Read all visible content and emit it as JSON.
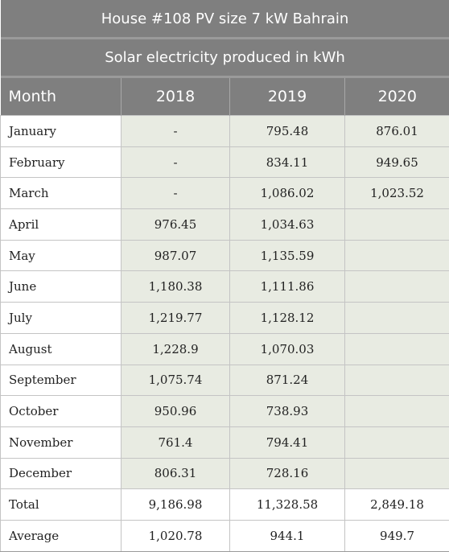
{
  "title": "House #108 PV size 7 kW Bahrain",
  "subtitle": "Solar electricity produced in kWh",
  "headers": [
    "Month",
    "2018",
    "2019",
    "2020"
  ],
  "rows": [
    {
      "month": "January",
      "v2018": "-",
      "v2019": "795.48",
      "v2020": "876.01"
    },
    {
      "month": "February",
      "v2018": "-",
      "v2019": "834.11",
      "v2020": "949.65"
    },
    {
      "month": "March",
      "v2018": "-",
      "v2019": "1,086.02",
      "v2020": "1,023.52"
    },
    {
      "month": "April",
      "v2018": "976.45",
      "v2019": "1,034.63",
      "v2020": ""
    },
    {
      "month": "May",
      "v2018": "987.07",
      "v2019": "1,135.59",
      "v2020": ""
    },
    {
      "month": "June",
      "v2018": "1,180.38",
      "v2019": "1,111.86",
      "v2020": ""
    },
    {
      "month": "July",
      "v2018": "1,219.77",
      "v2019": "1,128.12",
      "v2020": ""
    },
    {
      "month": "August",
      "v2018": "1,228.9",
      "v2019": "1,070.03",
      "v2020": ""
    },
    {
      "month": "September",
      "v2018": "1,075.74",
      "v2019": "871.24",
      "v2020": ""
    },
    {
      "month": "October",
      "v2018": "950.96",
      "v2019": "738.93",
      "v2020": ""
    },
    {
      "month": "November",
      "v2018": "761.4",
      "v2019": "794.41",
      "v2020": ""
    },
    {
      "month": "December",
      "v2018": "806.31",
      "v2019": "728.16",
      "v2020": ""
    }
  ],
  "summary": [
    {
      "label": "Total",
      "v2018": "9,186.98",
      "v2019": "11,328.58",
      "v2020": "2,849.18"
    },
    {
      "label": "Average",
      "v2018": "1,020.78",
      "v2019": "944.1",
      "v2020": "949.7"
    }
  ]
}
